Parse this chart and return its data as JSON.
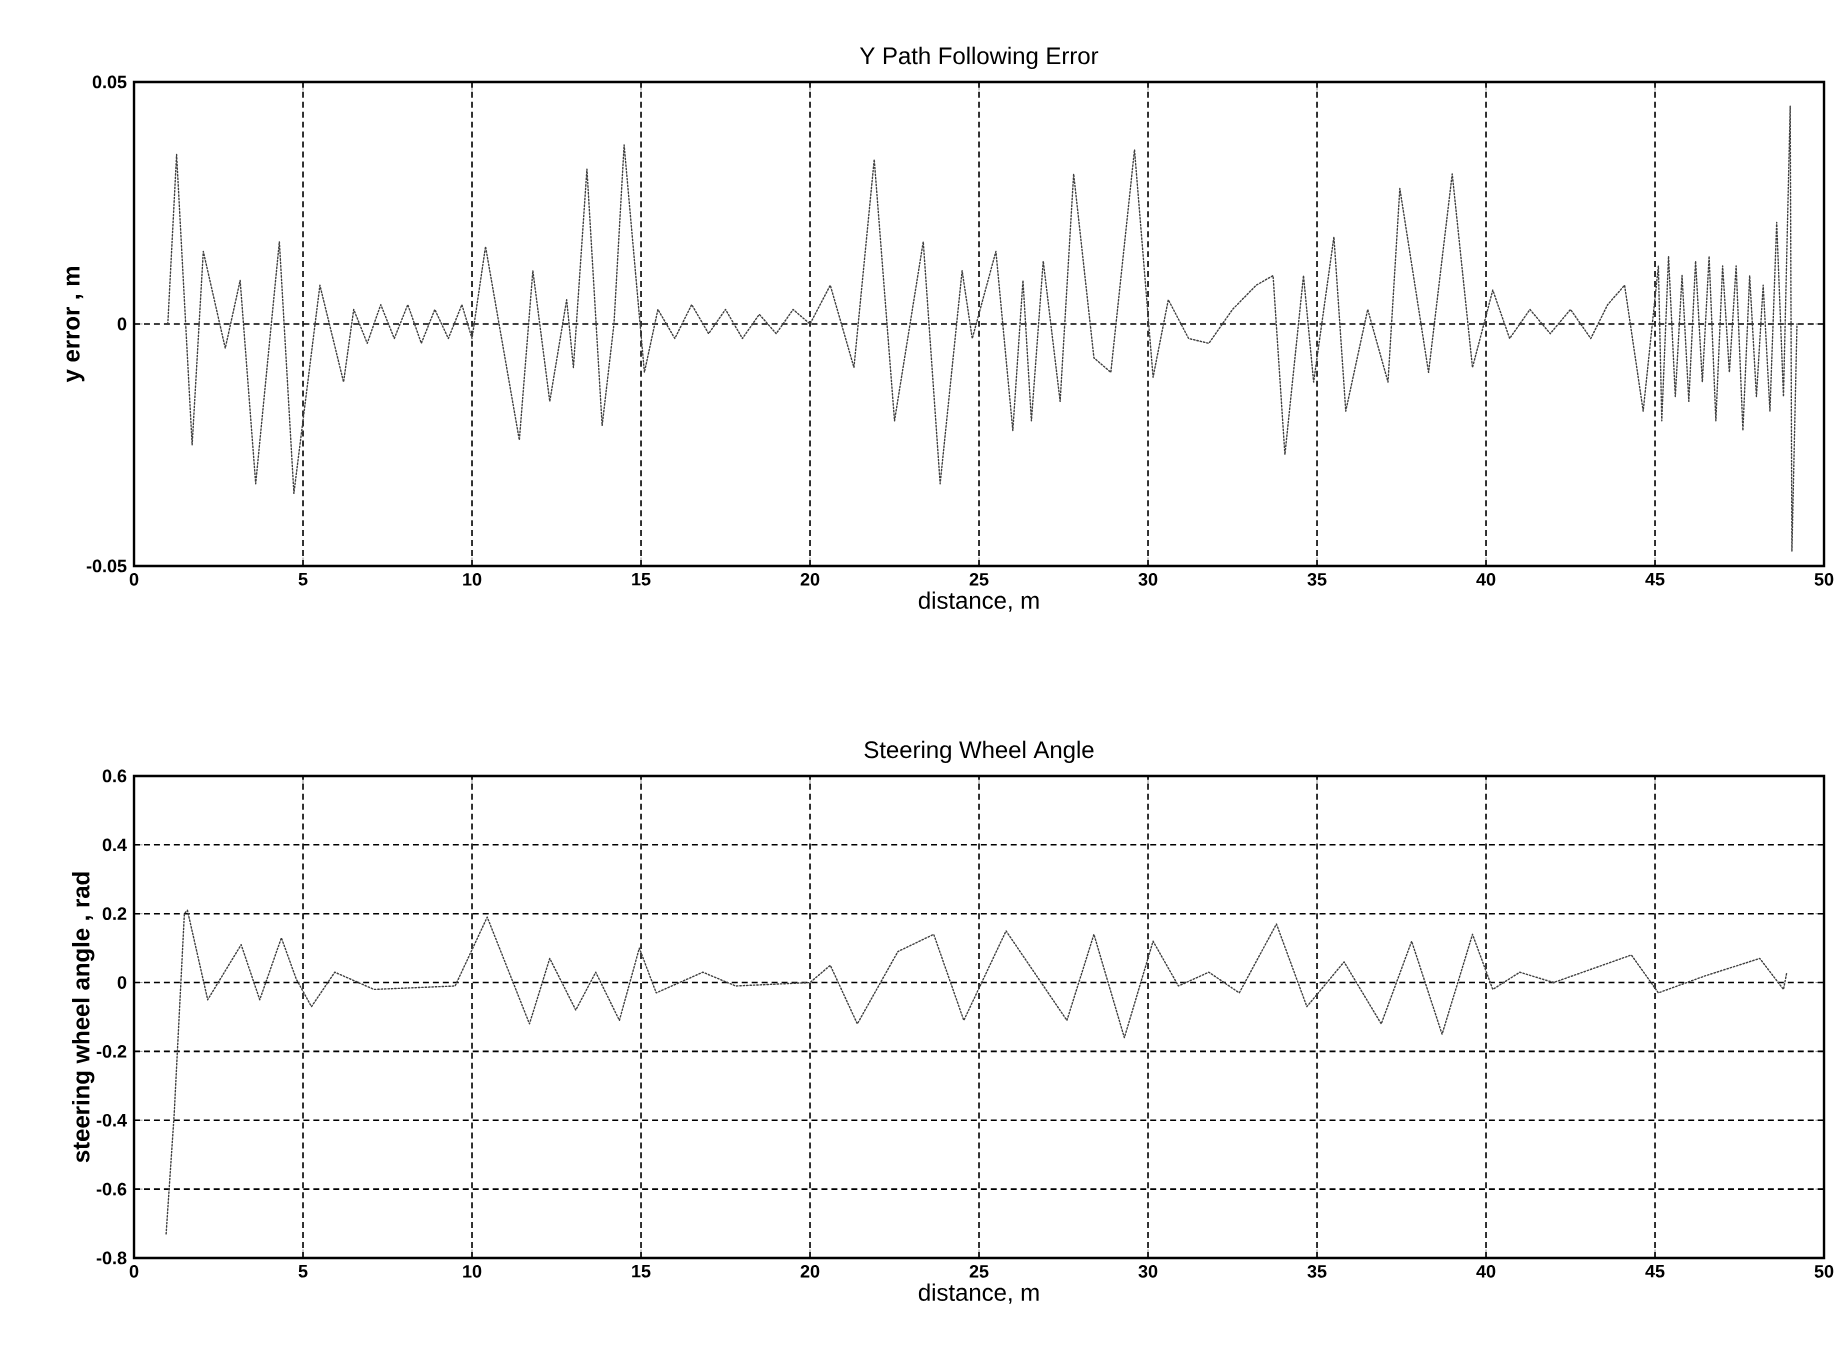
{
  "chart_data": [
    {
      "type": "line",
      "title": "Y Path Following Error",
      "xlabel": "distance, m",
      "ylabel": "y error , m",
      "grid": true,
      "line_style": "dotted",
      "xlim": [
        0,
        50
      ],
      "xticks": [
        0,
        5,
        10,
        15,
        20,
        25,
        30,
        35,
        40,
        45,
        50
      ],
      "ylim": [
        -0.05,
        0.05
      ],
      "yticks": [
        -0.05,
        0,
        0.05
      ],
      "series": [
        {
          "color": "#404040",
          "x": [
            1.0,
            1.26,
            1.72,
            2.05,
            2.7,
            3.14,
            3.6,
            4.3,
            4.73,
            5.5,
            6.2,
            6.5,
            6.9,
            7.3,
            7.7,
            8.1,
            8.5,
            8.9,
            9.3,
            9.7,
            10.0,
            10.4,
            11.4,
            11.8,
            12.3,
            12.8,
            13.0,
            13.4,
            13.85,
            14.2,
            14.5,
            15.1,
            15.5,
            16.0,
            16.5,
            17.0,
            17.5,
            18.0,
            18.5,
            19.0,
            19.5,
            20.0,
            20.6,
            21.3,
            21.9,
            22.5,
            23.35,
            23.85,
            24.5,
            24.8,
            25.5,
            26.0,
            26.3,
            26.55,
            26.9,
            27.4,
            27.8,
            28.4,
            28.9,
            29.6,
            30.15,
            30.6,
            31.2,
            31.8,
            32.5,
            33.2,
            33.7,
            34.05,
            34.6,
            34.9,
            35.5,
            35.85,
            36.5,
            37.1,
            37.45,
            38.3,
            39.0,
            39.6,
            40.2,
            40.7,
            41.3,
            41.9,
            42.5,
            43.1,
            43.6,
            44.1,
            44.65,
            45.1,
            45.2,
            45.4,
            45.6,
            45.8,
            46.0,
            46.2,
            46.4,
            46.6,
            46.8,
            47.0,
            47.2,
            47.4,
            47.6,
            47.8,
            48.0,
            48.2,
            48.4,
            48.6,
            48.8,
            49.0,
            49.05,
            49.2
          ],
          "values": [
            0.0,
            0.035,
            -0.025,
            0.015,
            -0.005,
            0.009,
            -0.033,
            0.017,
            -0.035,
            0.008,
            -0.012,
            0.003,
            -0.004,
            0.004,
            -0.003,
            0.004,
            -0.004,
            0.003,
            -0.003,
            0.004,
            -0.003,
            0.016,
            -0.024,
            0.011,
            -0.016,
            0.005,
            -0.009,
            0.032,
            -0.021,
            0.0,
            0.037,
            -0.01,
            0.003,
            -0.003,
            0.004,
            -0.002,
            0.003,
            -0.003,
            0.002,
            -0.002,
            0.003,
            0.0,
            0.008,
            -0.009,
            0.034,
            -0.02,
            0.017,
            -0.033,
            0.011,
            -0.003,
            0.015,
            -0.022,
            0.009,
            -0.02,
            0.013,
            -0.016,
            0.031,
            -0.007,
            -0.01,
            0.036,
            -0.011,
            0.005,
            -0.003,
            -0.004,
            0.003,
            0.008,
            0.01,
            -0.027,
            0.01,
            -0.012,
            0.018,
            -0.018,
            0.003,
            -0.012,
            0.028,
            -0.01,
            0.031,
            -0.009,
            0.007,
            -0.003,
            0.003,
            -0.002,
            0.003,
            -0.003,
            0.004,
            0.008,
            -0.018,
            0.012,
            -0.02,
            0.014,
            -0.015,
            0.01,
            -0.016,
            0.013,
            -0.012,
            0.014,
            -0.02,
            0.012,
            -0.01,
            0.012,
            -0.022,
            0.01,
            -0.015,
            0.008,
            -0.018,
            0.021,
            -0.015,
            0.045,
            -0.047,
            0.0
          ]
        }
      ]
    },
    {
      "type": "line",
      "title": "Steering Wheel Angle",
      "xlabel": "distance, m",
      "ylabel": "steering wheel angle , rad",
      "grid": true,
      "line_style": "dotted",
      "xlim": [
        0,
        50
      ],
      "xticks": [
        0,
        5,
        10,
        15,
        20,
        25,
        30,
        35,
        40,
        45,
        50
      ],
      "ylim": [
        -0.8,
        0.6
      ],
      "yticks": [
        -0.8,
        -0.6,
        -0.4,
        -0.2,
        0,
        0.2,
        0.4,
        0.6
      ],
      "series": [
        {
          "color": "#404040",
          "x": [
            0.95,
            1.19,
            1.49,
            1.58,
            2.18,
            3.17,
            3.72,
            4.36,
            4.8,
            5.25,
            5.94,
            7.1,
            9.5,
            10.45,
            11.7,
            12.3,
            13.07,
            13.66,
            14.36,
            14.95,
            15.45,
            16.83,
            17.8,
            20.0,
            20.6,
            21.4,
            22.6,
            23.66,
            24.55,
            25.8,
            27.6,
            28.4,
            29.3,
            30.15,
            30.9,
            31.8,
            32.7,
            33.8,
            34.7,
            35.8,
            36.9,
            37.8,
            38.7,
            39.6,
            40.2,
            41.0,
            42.0,
            44.3,
            45.1,
            46.5,
            48.1,
            48.8,
            48.9
          ],
          "values": [
            -0.73,
            -0.38,
            0.2,
            0.21,
            -0.05,
            0.11,
            -0.05,
            0.13,
            0.01,
            -0.07,
            0.03,
            -0.02,
            -0.01,
            0.19,
            -0.12,
            0.07,
            -0.08,
            0.03,
            -0.11,
            0.1,
            -0.03,
            0.03,
            -0.01,
            0.0,
            0.05,
            -0.12,
            0.09,
            0.14,
            -0.11,
            0.15,
            -0.11,
            0.14,
            -0.16,
            0.12,
            -0.01,
            0.03,
            -0.03,
            0.17,
            -0.07,
            0.06,
            -0.12,
            0.12,
            -0.15,
            0.14,
            -0.02,
            0.03,
            0.0,
            0.08,
            -0.03,
            0.02,
            0.07,
            -0.02,
            0.03
          ]
        }
      ]
    }
  ]
}
